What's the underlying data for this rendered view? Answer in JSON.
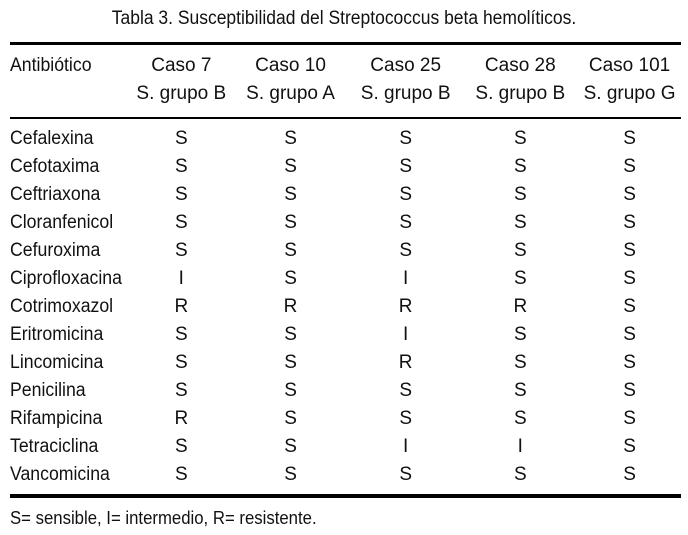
{
  "caption": "Tabla 3. Susceptibilidad del Streptococcus beta hemolíticos.",
  "columns": [
    {
      "label": "Antibiótico",
      "sub": ""
    },
    {
      "label": "Caso 7",
      "sub": "S. grupo B"
    },
    {
      "label": "Caso 10",
      "sub": "S. grupo A"
    },
    {
      "label": "Caso 25",
      "sub": "S. grupo B"
    },
    {
      "label": "Caso 28",
      "sub": "S. grupo B"
    },
    {
      "label": "Caso 101",
      "sub": "S. grupo G"
    }
  ],
  "rows": [
    {
      "name": "Cefalexina",
      "values": [
        "S",
        "S",
        "S",
        "S",
        "S"
      ]
    },
    {
      "name": "Cefotaxima",
      "values": [
        "S",
        "S",
        "S",
        "S",
        "S"
      ]
    },
    {
      "name": "Ceftriaxona",
      "values": [
        "S",
        "S",
        "S",
        "S",
        "S"
      ]
    },
    {
      "name": "Cloranfenicol",
      "values": [
        "S",
        "S",
        "S",
        "S",
        "S"
      ]
    },
    {
      "name": "Cefuroxima",
      "values": [
        "S",
        "S",
        "S",
        "S",
        "S"
      ]
    },
    {
      "name": "Ciprofloxacina",
      "values": [
        "I",
        "S",
        "I",
        "S",
        "S"
      ]
    },
    {
      "name": "Cotrimoxazol",
      "values": [
        "R",
        "R",
        "R",
        "R",
        "S"
      ]
    },
    {
      "name": "Eritromicina",
      "values": [
        "S",
        "S",
        "I",
        "S",
        "S"
      ]
    },
    {
      "name": "Lincomicina",
      "values": [
        "S",
        "S",
        "R",
        "S",
        "S"
      ]
    },
    {
      "name": "Penicilina",
      "values": [
        "S",
        "S",
        "S",
        "S",
        "S"
      ]
    },
    {
      "name": "Rifampicina",
      "values": [
        "R",
        "S",
        "S",
        "S",
        "S"
      ]
    },
    {
      "name": "Tetraciclina",
      "values": [
        "S",
        "S",
        "I",
        "I",
        "S"
      ]
    },
    {
      "name": "Vancomicina",
      "values": [
        "S",
        "S",
        "S",
        "S",
        "S"
      ]
    }
  ],
  "footnote": "S= sensible, I= intermedio, R= resistente."
}
